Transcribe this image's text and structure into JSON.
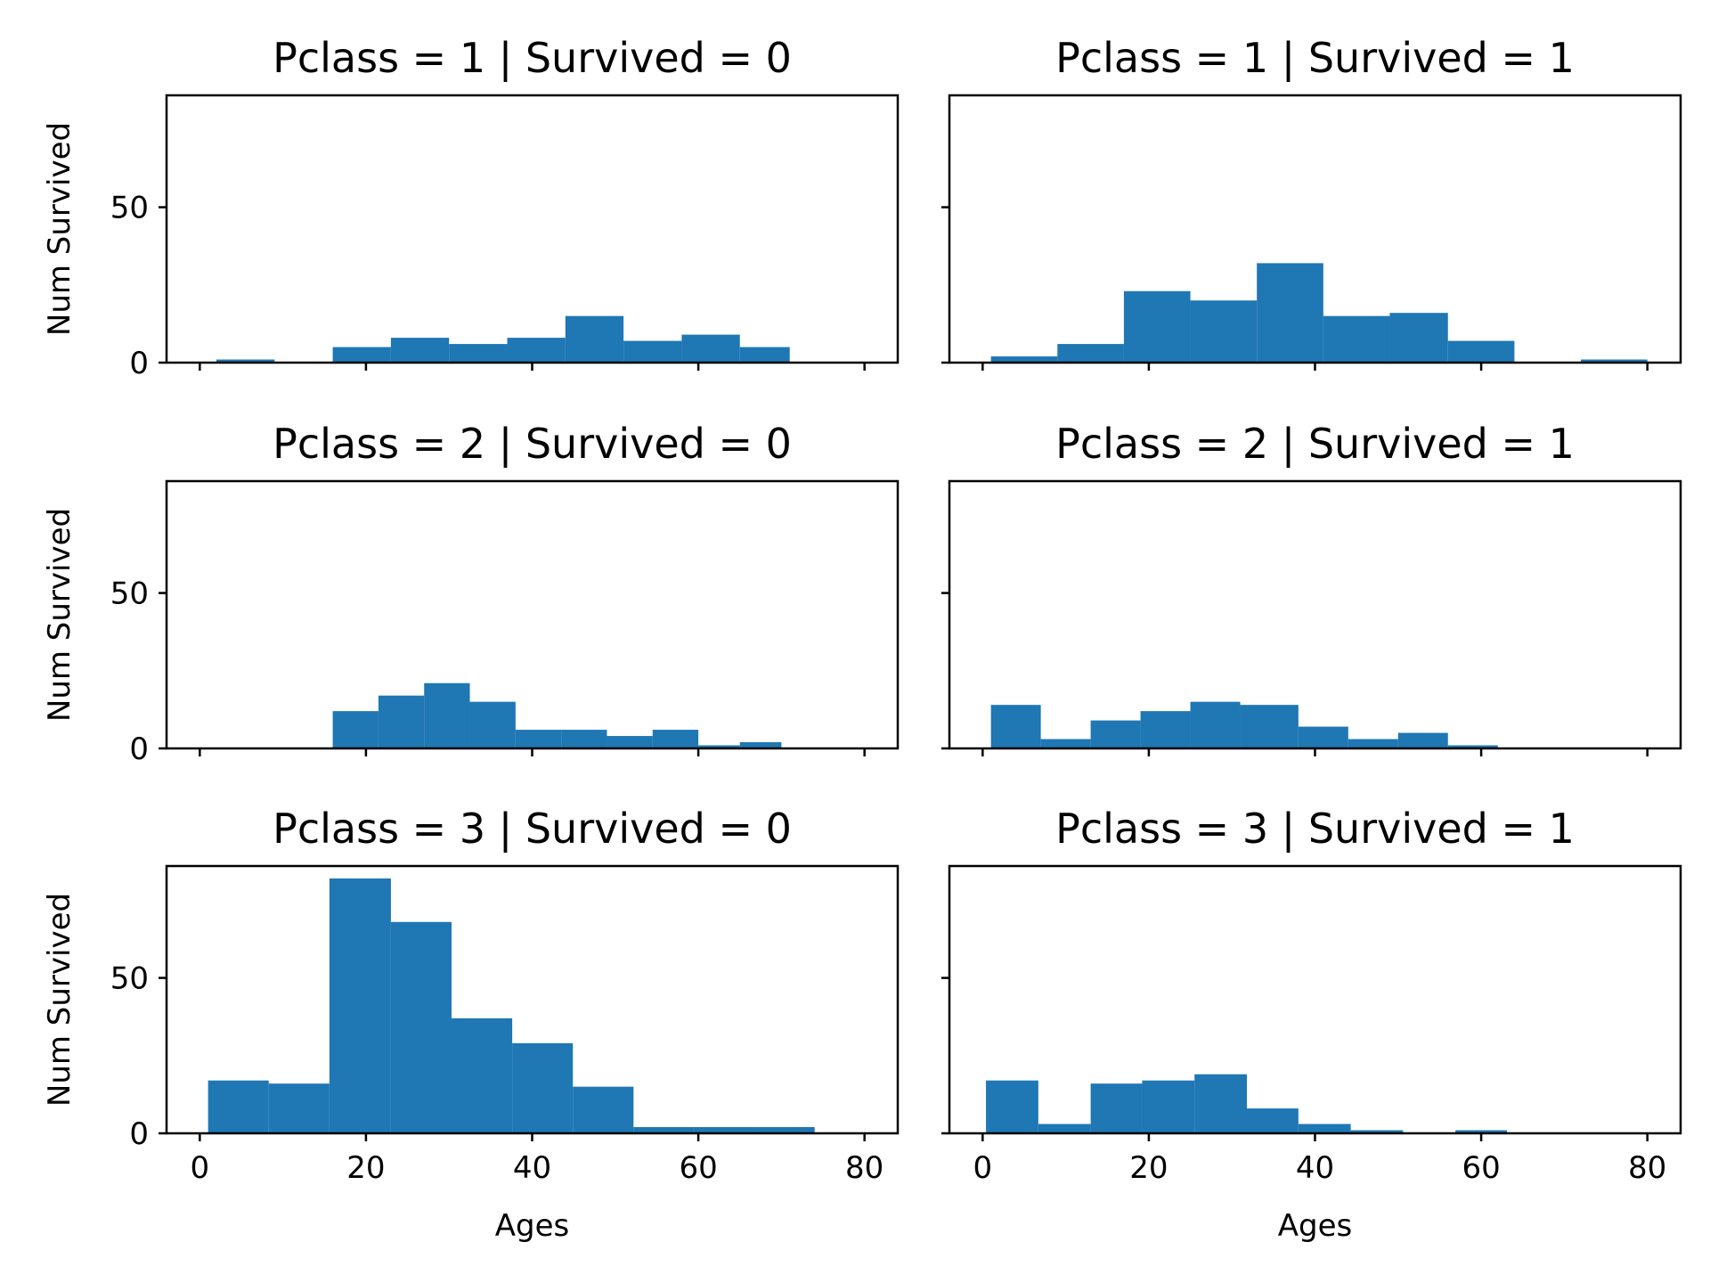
{
  "colors": {
    "bar": "#1f77b4",
    "axes": "#000000",
    "background": "#ffffff"
  },
  "chart_data": [
    {
      "type": "bar",
      "title": "Pclass = 1 | Survived = 0",
      "ylabel": "Num Survived",
      "xlabel": "",
      "xlim": [
        -4,
        84
      ],
      "ylim": [
        0,
        86
      ],
      "xticks": [
        0,
        20,
        40,
        60,
        80
      ],
      "yticks": [
        0,
        50
      ],
      "bins": [
        {
          "x0": 2,
          "x1": 9,
          "count": 1
        },
        {
          "x0": 16,
          "x1": 23,
          "count": 5
        },
        {
          "x0": 23,
          "x1": 30,
          "count": 8
        },
        {
          "x0": 30,
          "x1": 37,
          "count": 6
        },
        {
          "x0": 37,
          "x1": 44,
          "count": 8
        },
        {
          "x0": 44,
          "x1": 51,
          "count": 15
        },
        {
          "x0": 51,
          "x1": 58,
          "count": 7
        },
        {
          "x0": 58,
          "x1": 65,
          "count": 9
        },
        {
          "x0": 65,
          "x1": 71,
          "count": 5
        }
      ]
    },
    {
      "type": "bar",
      "title": "Pclass = 1 | Survived = 1",
      "ylabel": "",
      "xlabel": "",
      "xlim": [
        -4,
        84
      ],
      "ylim": [
        0,
        86
      ],
      "xticks": [
        0,
        20,
        40,
        60,
        80
      ],
      "yticks": [
        0,
        50
      ],
      "bins": [
        {
          "x0": 1,
          "x1": 9,
          "count": 2
        },
        {
          "x0": 9,
          "x1": 17,
          "count": 6
        },
        {
          "x0": 17,
          "x1": 25,
          "count": 23
        },
        {
          "x0": 25,
          "x1": 33,
          "count": 20
        },
        {
          "x0": 33,
          "x1": 41,
          "count": 32
        },
        {
          "x0": 41,
          "x1": 49,
          "count": 15
        },
        {
          "x0": 49,
          "x1": 56,
          "count": 16
        },
        {
          "x0": 56,
          "x1": 64,
          "count": 7
        },
        {
          "x0": 64,
          "x1": 72,
          "count": 0
        },
        {
          "x0": 72,
          "x1": 80,
          "count": 1
        }
      ]
    },
    {
      "type": "bar",
      "title": "Pclass = 2 | Survived = 0",
      "ylabel": "Num Survived",
      "xlabel": "",
      "xlim": [
        -4,
        84
      ],
      "ylim": [
        0,
        86
      ],
      "xticks": [
        0,
        20,
        40,
        60,
        80
      ],
      "yticks": [
        0,
        50
      ],
      "bins": [
        {
          "x0": 16,
          "x1": 21.5,
          "count": 12
        },
        {
          "x0": 21.5,
          "x1": 27,
          "count": 17
        },
        {
          "x0": 27,
          "x1": 32.5,
          "count": 21
        },
        {
          "x0": 32.5,
          "x1": 38,
          "count": 15
        },
        {
          "x0": 38,
          "x1": 43.5,
          "count": 6
        },
        {
          "x0": 43.5,
          "x1": 49,
          "count": 6
        },
        {
          "x0": 49,
          "x1": 54.5,
          "count": 4
        },
        {
          "x0": 54.5,
          "x1": 60,
          "count": 6
        },
        {
          "x0": 60,
          "x1": 65,
          "count": 1
        },
        {
          "x0": 65,
          "x1": 70,
          "count": 2
        }
      ]
    },
    {
      "type": "bar",
      "title": "Pclass = 2 | Survived = 1",
      "ylabel": "",
      "xlabel": "",
      "xlim": [
        -4,
        84
      ],
      "ylim": [
        0,
        86
      ],
      "xticks": [
        0,
        20,
        40,
        60,
        80
      ],
      "yticks": [
        0,
        50
      ],
      "bins": [
        {
          "x0": 1,
          "x1": 7,
          "count": 14
        },
        {
          "x0": 7,
          "x1": 13,
          "count": 3
        },
        {
          "x0": 13,
          "x1": 19,
          "count": 9
        },
        {
          "x0": 19,
          "x1": 25,
          "count": 12
        },
        {
          "x0": 25,
          "x1": 31,
          "count": 15
        },
        {
          "x0": 31,
          "x1": 38,
          "count": 14
        },
        {
          "x0": 38,
          "x1": 44,
          "count": 7
        },
        {
          "x0": 44,
          "x1": 50,
          "count": 3
        },
        {
          "x0": 50,
          "x1": 56,
          "count": 5
        },
        {
          "x0": 56,
          "x1": 62,
          "count": 1
        }
      ]
    },
    {
      "type": "bar",
      "title": "Pclass = 3 | Survived = 0",
      "ylabel": "Num Survived",
      "xlabel": "Ages",
      "xlim": [
        -4,
        84
      ],
      "ylim": [
        0,
        86
      ],
      "xticks": [
        0,
        20,
        40,
        60,
        80
      ],
      "yticks": [
        0,
        50
      ],
      "bins": [
        {
          "x0": 1,
          "x1": 8.3,
          "count": 17
        },
        {
          "x0": 8.3,
          "x1": 15.6,
          "count": 16
        },
        {
          "x0": 15.6,
          "x1": 23,
          "count": 82
        },
        {
          "x0": 23,
          "x1": 30.3,
          "count": 68
        },
        {
          "x0": 30.3,
          "x1": 37.6,
          "count": 37
        },
        {
          "x0": 37.6,
          "x1": 44.9,
          "count": 29
        },
        {
          "x0": 44.9,
          "x1": 52.2,
          "count": 15
        },
        {
          "x0": 52.2,
          "x1": 59.5,
          "count": 2
        },
        {
          "x0": 59.5,
          "x1": 66.8,
          "count": 2
        },
        {
          "x0": 66.8,
          "x1": 74,
          "count": 2
        }
      ]
    },
    {
      "type": "bar",
      "title": "Pclass = 3 | Survived = 1",
      "ylabel": "",
      "xlabel": "Ages",
      "xlim": [
        -4,
        84
      ],
      "ylim": [
        0,
        86
      ],
      "xticks": [
        0,
        20,
        40,
        60,
        80
      ],
      "yticks": [
        0,
        50
      ],
      "bins": [
        {
          "x0": 0.4,
          "x1": 6.7,
          "count": 17
        },
        {
          "x0": 6.7,
          "x1": 13,
          "count": 3
        },
        {
          "x0": 13,
          "x1": 19.2,
          "count": 16
        },
        {
          "x0": 19.2,
          "x1": 25.5,
          "count": 17
        },
        {
          "x0": 25.5,
          "x1": 31.8,
          "count": 19
        },
        {
          "x0": 31.8,
          "x1": 38,
          "count": 8
        },
        {
          "x0": 38,
          "x1": 44.3,
          "count": 3
        },
        {
          "x0": 44.3,
          "x1": 50.6,
          "count": 1
        },
        {
          "x0": 50.6,
          "x1": 56.9,
          "count": 0
        },
        {
          "x0": 56.9,
          "x1": 63.1,
          "count": 1
        }
      ]
    }
  ]
}
